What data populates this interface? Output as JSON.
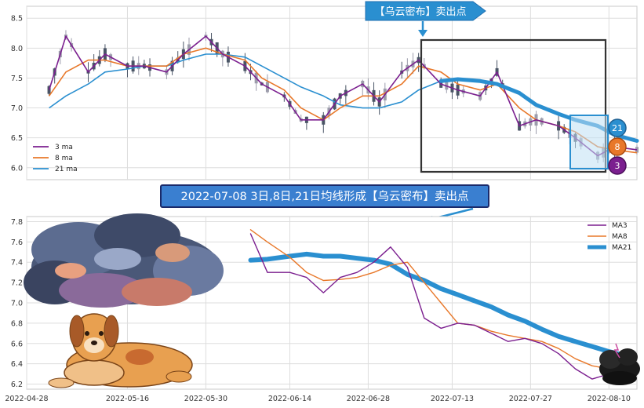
{
  "colors": {
    "ma3": "#7b1f8f",
    "ma8": "#e8782a",
    "ma21": "#2a8fd0",
    "candle_up": "#9c9cab",
    "candle_down": "#4a5566",
    "banner_fill": "#2a8fd0",
    "banner_dark": "#1f6fb0",
    "title_fill": "#3a7fd0",
    "box_stroke": "#333333",
    "grid": "#dddddd"
  },
  "top_banner": {
    "text": "【乌云密布】卖出点"
  },
  "center_title": {
    "text": "2022-07-08 3日,8日,21日均线形成【乌云密布】卖出点"
  },
  "badges": {
    "b21": "21",
    "b8": "8",
    "b3": "3"
  },
  "icons": [
    "storm-cloud-icon",
    "dog-illustration",
    "dark-cloud-icon"
  ],
  "chart_data": [
    {
      "type": "candlestick",
      "title": "",
      "ylim": [
        5.8,
        8.7
      ],
      "yticks": [
        "6.0",
        "6.5",
        "7.0",
        "7.5",
        "8.0",
        "8.5"
      ],
      "legend": [
        "3 ma",
        "8 ma",
        "21 ma"
      ],
      "legend_position": "lower-left",
      "x_start": "2022-04-28",
      "x_end": "2022-08-15",
      "series": [
        {
          "name": "3 ma",
          "x": [
            "2022-05-02",
            "2022-05-05",
            "2022-05-09",
            "2022-05-12",
            "2022-05-16",
            "2022-05-19",
            "2022-05-23",
            "2022-05-26",
            "2022-05-30",
            "2022-06-02",
            "2022-06-06",
            "2022-06-09",
            "2022-06-13",
            "2022-06-16",
            "2022-06-20",
            "2022-06-23",
            "2022-06-27",
            "2022-06-30",
            "2022-07-04",
            "2022-07-07",
            "2022-07-11",
            "2022-07-14",
            "2022-07-18",
            "2022-07-21",
            "2022-07-25",
            "2022-07-28",
            "2022-08-01",
            "2022-08-04",
            "2022-08-08",
            "2022-08-11",
            "2022-08-15"
          ],
          "values": [
            7.3,
            8.2,
            7.6,
            7.9,
            7.7,
            7.7,
            7.6,
            7.9,
            8.2,
            7.9,
            7.7,
            7.4,
            7.2,
            6.8,
            6.8,
            7.2,
            7.4,
            7.1,
            7.6,
            7.8,
            7.4,
            7.3,
            7.2,
            7.6,
            6.7,
            6.8,
            6.7,
            6.5,
            6.2,
            6.35,
            6.3
          ]
        },
        {
          "name": "8 ma",
          "x": [
            "2022-05-02",
            "2022-05-05",
            "2022-05-09",
            "2022-05-12",
            "2022-05-16",
            "2022-05-19",
            "2022-05-23",
            "2022-05-26",
            "2022-05-30",
            "2022-06-02",
            "2022-06-06",
            "2022-06-09",
            "2022-06-13",
            "2022-06-16",
            "2022-06-20",
            "2022-06-23",
            "2022-06-27",
            "2022-06-30",
            "2022-07-04",
            "2022-07-07",
            "2022-07-11",
            "2022-07-14",
            "2022-07-18",
            "2022-07-21",
            "2022-07-25",
            "2022-07-28",
            "2022-08-01",
            "2022-08-04",
            "2022-08-08",
            "2022-08-11",
            "2022-08-15"
          ],
          "values": [
            7.2,
            7.6,
            7.8,
            7.8,
            7.7,
            7.7,
            7.7,
            7.9,
            8.0,
            7.9,
            7.8,
            7.5,
            7.3,
            7.0,
            6.8,
            7.0,
            7.2,
            7.2,
            7.4,
            7.7,
            7.6,
            7.4,
            7.3,
            7.4,
            7.0,
            6.8,
            6.7,
            6.6,
            6.35,
            6.3,
            6.25
          ]
        },
        {
          "name": "21 ma",
          "x": [
            "2022-05-02",
            "2022-05-05",
            "2022-05-09",
            "2022-05-12",
            "2022-05-16",
            "2022-05-19",
            "2022-05-23",
            "2022-05-26",
            "2022-05-30",
            "2022-06-02",
            "2022-06-06",
            "2022-06-09",
            "2022-06-13",
            "2022-06-16",
            "2022-06-20",
            "2022-06-23",
            "2022-06-27",
            "2022-06-30",
            "2022-07-04",
            "2022-07-07",
            "2022-07-11",
            "2022-07-14",
            "2022-07-18",
            "2022-07-21",
            "2022-07-25",
            "2022-07-28",
            "2022-08-01",
            "2022-08-04",
            "2022-08-08",
            "2022-08-11",
            "2022-08-15"
          ],
          "values": [
            7.0,
            7.2,
            7.4,
            7.6,
            7.65,
            7.7,
            7.7,
            7.8,
            7.9,
            7.9,
            7.85,
            7.7,
            7.5,
            7.35,
            7.2,
            7.05,
            7.0,
            7.0,
            7.1,
            7.3,
            7.45,
            7.48,
            7.45,
            7.4,
            7.25,
            7.05,
            6.9,
            6.8,
            6.7,
            6.55,
            6.45
          ]
        }
      ]
    },
    {
      "type": "line",
      "title": "",
      "ylim": [
        6.15,
        7.85
      ],
      "yticks": [
        "6.2",
        "6.4",
        "6.6",
        "6.8",
        "7.0",
        "7.2",
        "7.4",
        "7.6",
        "7.8"
      ],
      "x_start": "2022-04-28",
      "x_end": "2022-08-15",
      "xticks": [
        "2022-04-28",
        "2022-05-16",
        "2022-05-30",
        "2022-06-14",
        "2022-06-28",
        "2022-07-13",
        "2022-07-27",
        "2022-08-10"
      ],
      "legend": [
        "MA3",
        "MA8",
        "MA21"
      ],
      "legend_position": "top-right",
      "series": [
        {
          "name": "MA3",
          "x": [
            "2022-06-07",
            "2022-06-10",
            "2022-06-14",
            "2022-06-17",
            "2022-06-20",
            "2022-06-23",
            "2022-06-26",
            "2022-06-29",
            "2022-07-02",
            "2022-07-05",
            "2022-07-08",
            "2022-07-11",
            "2022-07-14",
            "2022-07-17",
            "2022-07-20",
            "2022-07-23",
            "2022-07-26",
            "2022-07-29",
            "2022-08-01",
            "2022-08-04",
            "2022-08-07",
            "2022-08-10",
            "2022-08-13"
          ],
          "values": [
            7.68,
            7.3,
            7.3,
            7.25,
            7.1,
            7.25,
            7.3,
            7.4,
            7.55,
            7.35,
            6.85,
            6.75,
            6.8,
            6.78,
            6.7,
            6.62,
            6.65,
            6.6,
            6.5,
            6.35,
            6.25,
            6.3,
            6.33
          ]
        },
        {
          "name": "MA8",
          "x": [
            "2022-06-07",
            "2022-06-10",
            "2022-06-14",
            "2022-06-17",
            "2022-06-20",
            "2022-06-23",
            "2022-06-26",
            "2022-06-29",
            "2022-07-02",
            "2022-07-05",
            "2022-07-08",
            "2022-07-11",
            "2022-07-14",
            "2022-07-17",
            "2022-07-20",
            "2022-07-23",
            "2022-07-26",
            "2022-07-29",
            "2022-08-01",
            "2022-08-04",
            "2022-08-07",
            "2022-08-10",
            "2022-08-13"
          ],
          "values": [
            7.72,
            7.6,
            7.45,
            7.3,
            7.22,
            7.23,
            7.25,
            7.3,
            7.37,
            7.4,
            7.2,
            7.0,
            6.8,
            6.78,
            6.72,
            6.68,
            6.65,
            6.62,
            6.55,
            6.45,
            6.38,
            6.35,
            6.33
          ]
        },
        {
          "name": "MA21",
          "x": [
            "2022-06-07",
            "2022-06-10",
            "2022-06-14",
            "2022-06-17",
            "2022-06-20",
            "2022-06-23",
            "2022-06-26",
            "2022-06-29",
            "2022-07-02",
            "2022-07-05",
            "2022-07-08",
            "2022-07-11",
            "2022-07-14",
            "2022-07-17",
            "2022-07-20",
            "2022-07-23",
            "2022-07-26",
            "2022-07-29",
            "2022-08-01",
            "2022-08-04",
            "2022-08-07",
            "2022-08-10",
            "2022-08-13"
          ],
          "values": [
            7.42,
            7.43,
            7.46,
            7.48,
            7.46,
            7.46,
            7.44,
            7.42,
            7.38,
            7.28,
            7.22,
            7.14,
            7.08,
            7.02,
            6.96,
            6.88,
            6.82,
            6.74,
            6.67,
            6.62,
            6.57,
            6.52,
            6.48
          ]
        }
      ]
    }
  ]
}
